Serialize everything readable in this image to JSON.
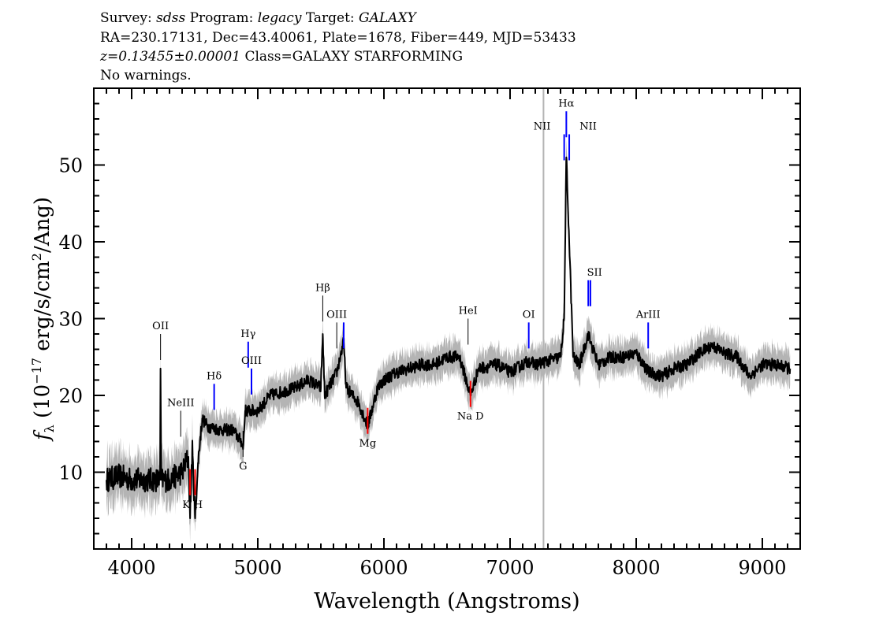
{
  "header": {
    "line1_a": "Survey: ",
    "line1_b": "sdss",
    "line1_c": " Program: ",
    "line1_d": "legacy",
    "line1_e": " Target: ",
    "line1_f": "GALAXY",
    "line2": "RA=230.17131, Dec=43.40061, Plate=1678, Fiber=449, MJD=53433",
    "line3_a": "z=0.13455±0.00001",
    "line3_b": " Class=GALAXY STARFORMING",
    "line4": "No warnings."
  },
  "chart_data": {
    "type": "line",
    "xlabel": "Wavelength (Angstroms)",
    "ylabel": "f_λ (10^-17 erg/s/cm^2/Ang)",
    "xlim": [
      3700,
      9300
    ],
    "ylim": [
      0,
      60
    ],
    "xticks": [
      4000,
      5000,
      6000,
      7000,
      8000,
      9000
    ],
    "yticks": [
      10,
      20,
      30,
      40,
      50
    ],
    "grid": false,
    "colors": {
      "flux": "#000000",
      "error": "#b4b4b4",
      "emission": "#0000ff",
      "absorption": "#ff0000",
      "other": "#000000"
    },
    "flux": [
      [
        3800,
        9
      ],
      [
        3900,
        9.5
      ],
      [
        4000,
        9
      ],
      [
        4100,
        9
      ],
      [
        4200,
        9
      ],
      [
        4225,
        9
      ],
      [
        4229,
        23.5
      ],
      [
        4235,
        9
      ],
      [
        4300,
        9
      ],
      [
        4400,
        10
      ],
      [
        4450,
        12
      ],
      [
        4463,
        4
      ],
      [
        4480,
        13
      ],
      [
        4503,
        4
      ],
      [
        4530,
        12
      ],
      [
        4560,
        17
      ],
      [
        4600,
        16
      ],
      [
        4700,
        15.5
      ],
      [
        4800,
        15.5
      ],
      [
        4870,
        14
      ],
      [
        4883,
        13
      ],
      [
        4900,
        18
      ],
      [
        5000,
        18
      ],
      [
        5100,
        20
      ],
      [
        5200,
        20.5
      ],
      [
        5300,
        21
      ],
      [
        5400,
        22
      ],
      [
        5500,
        21
      ],
      [
        5515,
        28
      ],
      [
        5530,
        20
      ],
      [
        5626,
        23
      ],
      [
        5681,
        27
      ],
      [
        5700,
        21
      ],
      [
        5800,
        19
      ],
      [
        5871,
        16
      ],
      [
        5950,
        21
      ],
      [
        6000,
        22
      ],
      [
        6100,
        23
      ],
      [
        6200,
        23.5
      ],
      [
        6300,
        24
      ],
      [
        6400,
        24
      ],
      [
        6500,
        25
      ],
      [
        6600,
        25
      ],
      [
        6686,
        20
      ],
      [
        6750,
        23.5
      ],
      [
        6900,
        24
      ],
      [
        7000,
        23
      ],
      [
        7148,
        24.5
      ],
      [
        7200,
        24
      ],
      [
        7300,
        24.5
      ],
      [
        7400,
        25
      ],
      [
        7429,
        30
      ],
      [
        7446,
        51
      ],
      [
        7469,
        40
      ],
      [
        7500,
        25
      ],
      [
        7550,
        24
      ],
      [
        7620,
        28
      ],
      [
        7637,
        27
      ],
      [
        7700,
        24
      ],
      [
        7800,
        25
      ],
      [
        7900,
        25
      ],
      [
        8000,
        25.5
      ],
      [
        8100,
        23
      ],
      [
        8200,
        22.5
      ],
      [
        8300,
        23.5
      ],
      [
        8400,
        24
      ],
      [
        8500,
        25.5
      ],
      [
        8600,
        26.5
      ],
      [
        8700,
        25.5
      ],
      [
        8800,
        25
      ],
      [
        8900,
        22.5
      ],
      [
        9000,
        24
      ],
      [
        9100,
        24
      ],
      [
        9220,
        23.5
      ]
    ],
    "sky_line_wavelength": 7265,
    "lines": [
      {
        "label": "OII",
        "wave": 4229,
        "kind": "other",
        "pos": "above",
        "y": 28
      },
      {
        "label": "NeIII",
        "wave": 4389,
        "kind": "other",
        "pos": "above",
        "y": 18
      },
      {
        "label": "Hδ",
        "wave": 4654,
        "kind": "emission",
        "pos": "above",
        "y": 21.5
      },
      {
        "label": "Hγ",
        "wave": 4924,
        "kind": "emission",
        "pos": "above",
        "y": 27
      },
      {
        "label": "OIII",
        "wave": 4950,
        "kind": "emission",
        "pos": "above",
        "y": 23.5
      },
      {
        "label": "Hβ",
        "wave": 5515,
        "kind": "other",
        "pos": "above",
        "y": 33
      },
      {
        "label": "OIII",
        "wave": 5626,
        "kind": "other",
        "pos": "above",
        "y": 29.5
      },
      {
        "label": "",
        "wave": 5681,
        "kind": "emission",
        "pos": "above",
        "y": 29.5
      },
      {
        "label": "HeI",
        "wave": 6667,
        "kind": "other",
        "pos": "above",
        "y": 30
      },
      {
        "label": "OI",
        "wave": 7148,
        "kind": "emission",
        "pos": "above",
        "y": 29.5
      },
      {
        "label": "NII",
        "wave": 7429,
        "kind": "emission",
        "pos": "above",
        "y": 54,
        "dx": -28
      },
      {
        "label": "Hα",
        "wave": 7446,
        "kind": "emission",
        "pos": "above",
        "y": 57
      },
      {
        "label": "NII",
        "wave": 7469,
        "kind": "emission",
        "pos": "above",
        "y": 54,
        "dx": 24
      },
      {
        "label": "SII",
        "wave": 7620,
        "kind": "emission",
        "pos": "above",
        "y": 35,
        "dx": 8
      },
      {
        "label": "",
        "wave": 7637,
        "kind": "emission",
        "pos": "above",
        "y": 35
      },
      {
        "label": "ArIII",
        "wave": 8095,
        "kind": "emission",
        "pos": "above",
        "y": 29.5
      },
      {
        "label": "K",
        "wave": 4463,
        "kind": "absorption",
        "pos": "below",
        "y": 7,
        "dx": -5
      },
      {
        "label": "H",
        "wave": 4503,
        "kind": "absorption",
        "pos": "below",
        "y": 7,
        "dx": 4
      },
      {
        "label": "G",
        "wave": 4883,
        "kind": "other",
        "pos": "below",
        "y": 12
      },
      {
        "label": "Mg",
        "wave": 5871,
        "kind": "absorption",
        "pos": "below",
        "y": 15
      },
      {
        "label": "Na D",
        "wave": 6686,
        "kind": "absorption",
        "pos": "below",
        "y": 18.5
      }
    ]
  }
}
